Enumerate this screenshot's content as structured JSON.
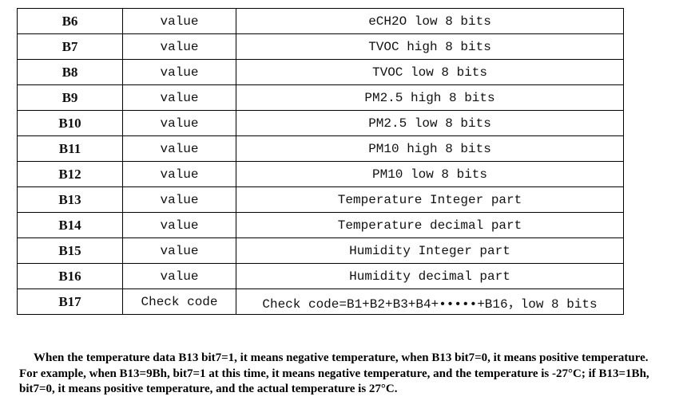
{
  "table": {
    "rows": [
      [
        "B6",
        "value",
        "eCH2O low 8 bits"
      ],
      [
        "B7",
        "value",
        "TVOC high 8 bits"
      ],
      [
        "B8",
        "value",
        "TVOC low 8 bits"
      ],
      [
        "B9",
        "value",
        "PM2.5 high 8 bits"
      ],
      [
        "B10",
        "value",
        "PM2.5 low 8 bits"
      ],
      [
        "B11",
        "value",
        "PM10 high 8 bits"
      ],
      [
        "B12",
        "value",
        "PM10 low 8 bits"
      ],
      [
        "B13",
        "value",
        "Temperature Integer part"
      ],
      [
        "B14",
        "value",
        "Temperature decimal part"
      ],
      [
        "B15",
        "value",
        "Humidity Integer part"
      ],
      [
        "B16",
        "value",
        "Humidity decimal part"
      ],
      [
        "B17",
        "Check code",
        "Check code=B1+B2+B3+B4+•••••+B16，low 8 bits"
      ]
    ]
  },
  "note": "When the temperature data B13 bit7=1, it means negative temperature, when B13 bit7=0, it means positive temperature. For example, when B13=9Bh, bit7=1 at this time, it means negative temperature, and the temperature is -27°C; if B13=1Bh, bit7=0, it means positive temperature, and the actual temperature is 27°C."
}
